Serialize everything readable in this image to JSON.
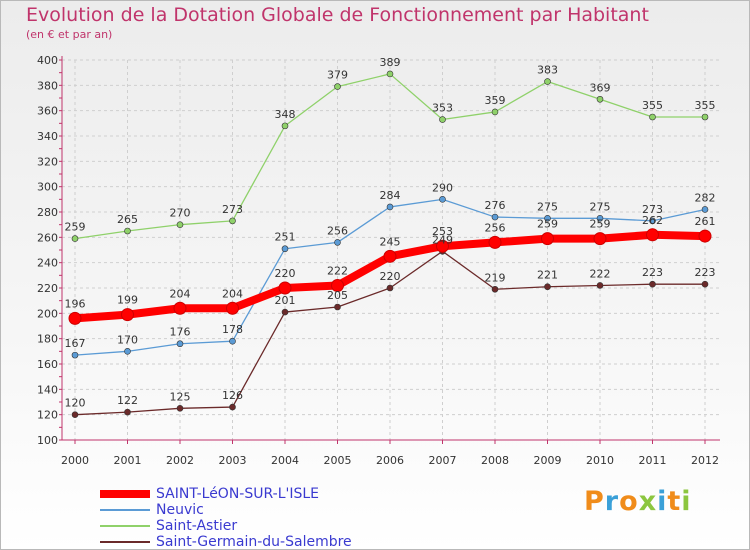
{
  "header": {
    "title": "Evolution de la Dotation Globale de Fonctionnement par Habitant",
    "subtitle": "(en € et par an)"
  },
  "logo": {
    "text": "Proxiti"
  },
  "colors": {
    "title": "#c0346b",
    "axis": "#c0346b",
    "legend_text": "#3a3ad0"
  },
  "chart_data": {
    "type": "line",
    "title": "Evolution de la Dotation Globale de Fonctionnement par Habitant",
    "subtitle": "(en € et par an)",
    "x": [
      "2000",
      "2001",
      "2002",
      "2003",
      "2004",
      "2005",
      "2006",
      "2007",
      "2008",
      "2009",
      "2010",
      "2011",
      "2012"
    ],
    "ylim": [
      100,
      400
    ],
    "yticks": [
      100,
      120,
      140,
      160,
      180,
      200,
      220,
      240,
      260,
      280,
      300,
      320,
      340,
      360,
      380,
      400
    ],
    "grid": true,
    "legend_position": "bottom-left",
    "series": [
      {
        "name": "SAINT-LéON-SUR-L'ISLE",
        "color": "#ff0000",
        "thick": true,
        "values": [
          196,
          199,
          204,
          204,
          220,
          222,
          245,
          253,
          256,
          259,
          259,
          262,
          261
        ]
      },
      {
        "name": "Neuvic",
        "color": "#5b9bd5",
        "thick": false,
        "values": [
          167,
          170,
          176,
          178,
          251,
          256,
          284,
          290,
          276,
          275,
          275,
          273,
          282
        ]
      },
      {
        "name": "Saint-Astier",
        "color": "#8fd16a",
        "thick": false,
        "values": [
          259,
          265,
          270,
          273,
          348,
          379,
          389,
          353,
          359,
          383,
          369,
          355,
          355
        ]
      },
      {
        "name": "Saint-Germain-du-Salembre",
        "color": "#6b2a2a",
        "thick": false,
        "values": [
          120,
          122,
          125,
          126,
          201,
          205,
          220,
          249,
          219,
          221,
          222,
          223,
          223
        ]
      }
    ]
  }
}
